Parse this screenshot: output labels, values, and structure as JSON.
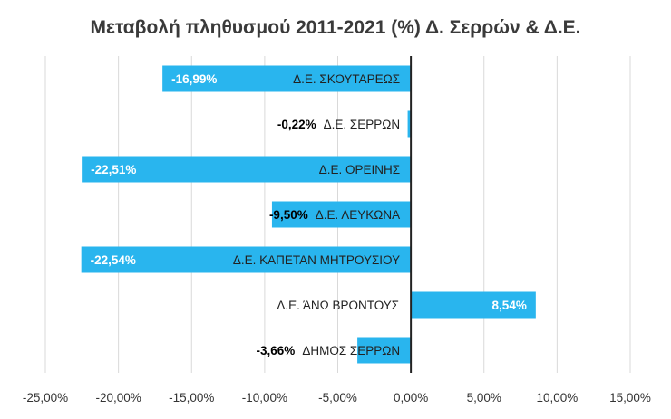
{
  "chart_data": {
    "type": "bar",
    "orientation": "horizontal",
    "title": "Μεταβολή πληθυσμού 2011-2021 (%) Δ. Σερρών & Δ.Ε.",
    "categories": [
      "Δ.Ε. ΣΚΟΥΤΑΡΕΩΣ",
      "Δ.Ε. ΣΕΡΡΩΝ",
      "Δ.Ε. ΟΡΕΙΝΗΣ",
      "Δ.Ε. ΛΕΥΚΩΝΑ",
      "Δ.Ε. ΚΑΠΕΤΑΝ ΜΗΤΡΟΥΣΙΟΥ",
      "Δ.Ε. ΆΝΩ ΒΡΟΝΤΟΥΣ",
      "ΔΗΜΟΣ ΣΕΡΡΩΝ"
    ],
    "values": [
      -16.99,
      -0.22,
      -22.51,
      -9.5,
      -22.54,
      8.54,
      -3.66
    ],
    "data_labels": [
      "-16,99%",
      "-0,22%",
      "-22,51%",
      "-9,50%",
      "-22,54%",
      "8,54%",
      "-3,66%"
    ],
    "xlim": [
      -25,
      15
    ],
    "x_ticks": [
      -25,
      -20,
      -15,
      -10,
      -5,
      0,
      5,
      10,
      15
    ],
    "x_tick_labels": [
      "-25,00%",
      "-20,00%",
      "-15,00%",
      "-10,00%",
      "-5,00%",
      "0,00%",
      "5,00%",
      "10,00%",
      "15,00%"
    ],
    "grid": "vertical",
    "legend": "none",
    "colors": {
      "bar": "#29B5EE",
      "grid": "#d9d9d9",
      "zero_line": "#222222",
      "label_inside": "#ffffff",
      "label_outside": "#000000"
    }
  }
}
